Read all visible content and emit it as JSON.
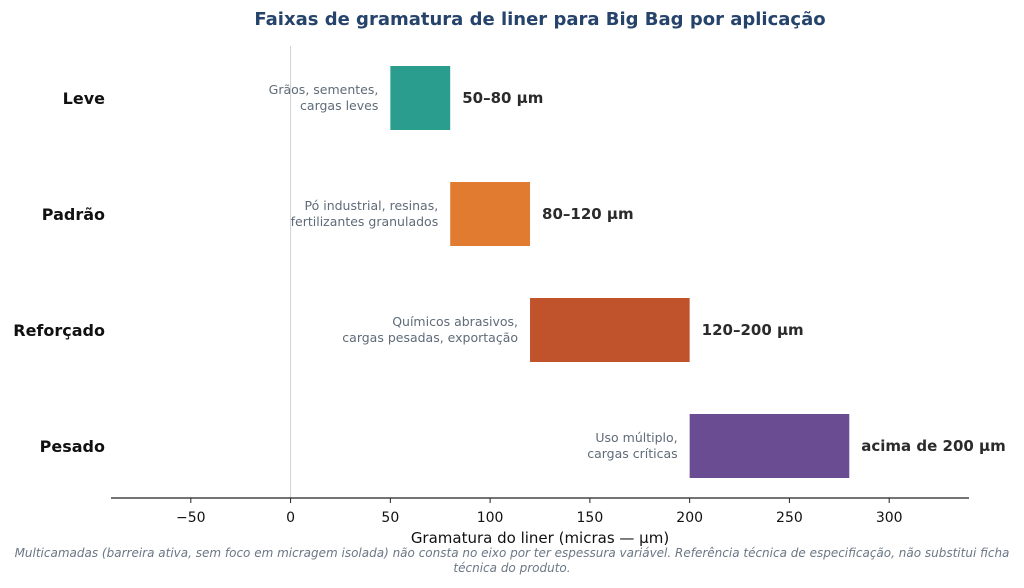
{
  "chart_data": {
    "type": "bar",
    "orientation": "horizontal",
    "title": "Faixas de gramatura de liner para Big Bag por aplicação",
    "xlabel": "Gramatura do liner (micras — µm)",
    "ylabel": "",
    "xlim": [
      -90,
      340
    ],
    "xticks": [
      -50,
      0,
      50,
      100,
      150,
      200,
      250,
      300
    ],
    "xtick_labels": [
      "−50",
      "0",
      "50",
      "100",
      "150",
      "200",
      "250",
      "300"
    ],
    "grid": false,
    "categories": [
      "Leve",
      "Padrão",
      "Reforçado",
      "Pesado"
    ],
    "bars": [
      {
        "category": "Leve",
        "start": 50,
        "end": 80,
        "color": "#2a9d8f",
        "range_label": "50–80 µm",
        "description": [
          "Grãos, sementes,",
          "cargas leves"
        ]
      },
      {
        "category": "Padrão",
        "start": 80,
        "end": 120,
        "color": "#e07b30",
        "range_label": "80–120 µm",
        "description": [
          "Pó industrial, resinas,",
          "fertilizantes granulados"
        ]
      },
      {
        "category": "Reforçado",
        "start": 120,
        "end": 200,
        "color": "#c0522c",
        "range_label": "120–200 µm",
        "description": [
          "Químicos abrasivos,",
          "cargas pesadas, exportação"
        ]
      },
      {
        "category": "Pesado",
        "start": 200,
        "end": 280,
        "color": "#6a4c93",
        "range_label": "acima de 200 µm",
        "description": [
          "Uso múltiplo,",
          "cargas críticas"
        ]
      }
    ],
    "footnote": "Multicamadas (barreira ativa, sem foco em micragem isolada) não consta no eixo por ter espessura variável. Referência técnica de especificação, não substitui ficha técnica do produto."
  }
}
